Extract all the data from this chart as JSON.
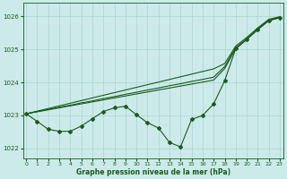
{
  "xlabel": "Graphe pression niveau de la mer (hPa)",
  "ylim": [
    1021.7,
    1026.4
  ],
  "xlim": [
    -0.3,
    23.3
  ],
  "yticks": [
    1022,
    1023,
    1024,
    1025,
    1026
  ],
  "xticks": [
    0,
    1,
    2,
    3,
    4,
    5,
    6,
    7,
    8,
    9,
    10,
    11,
    12,
    13,
    14,
    15,
    16,
    17,
    18,
    19,
    20,
    21,
    22,
    23
  ],
  "background_color": "#cceaea",
  "grid_color": "#aad4d4",
  "line_color": "#1a5c1a",
  "y_linear1": [
    1023.05,
    1023.12,
    1023.18,
    1023.25,
    1023.31,
    1023.38,
    1023.44,
    1023.51,
    1023.57,
    1023.64,
    1023.7,
    1023.77,
    1023.83,
    1023.9,
    1023.96,
    1024.03,
    1024.09,
    1024.16,
    1024.48,
    1025.05,
    1025.32,
    1025.62,
    1025.88,
    1025.97
  ],
  "y_linear2": [
    1023.05,
    1023.11,
    1023.17,
    1023.23,
    1023.29,
    1023.35,
    1023.41,
    1023.47,
    1023.53,
    1023.59,
    1023.65,
    1023.71,
    1023.77,
    1023.83,
    1023.89,
    1023.95,
    1024.01,
    1024.07,
    1024.42,
    1025.02,
    1025.3,
    1025.6,
    1025.87,
    1025.96
  ],
  "y_linear3": [
    1023.05,
    1023.13,
    1023.21,
    1023.29,
    1023.37,
    1023.45,
    1023.53,
    1023.61,
    1023.69,
    1023.77,
    1023.85,
    1023.93,
    1024.01,
    1024.09,
    1024.17,
    1024.25,
    1024.33,
    1024.41,
    1024.57,
    1025.1,
    1025.36,
    1025.65,
    1025.91,
    1025.99
  ],
  "y_lower": [
    1023.05,
    1022.82,
    1022.58,
    1022.52,
    1022.52,
    1022.68,
    1022.9,
    1023.12,
    1023.23,
    1023.28,
    1023.02,
    1022.78,
    1022.62,
    1022.18,
    1022.05,
    1022.88,
    1023.0,
    1023.35,
    1024.05,
    1025.02,
    1025.3,
    1025.6,
    1025.87,
    1025.96
  ]
}
